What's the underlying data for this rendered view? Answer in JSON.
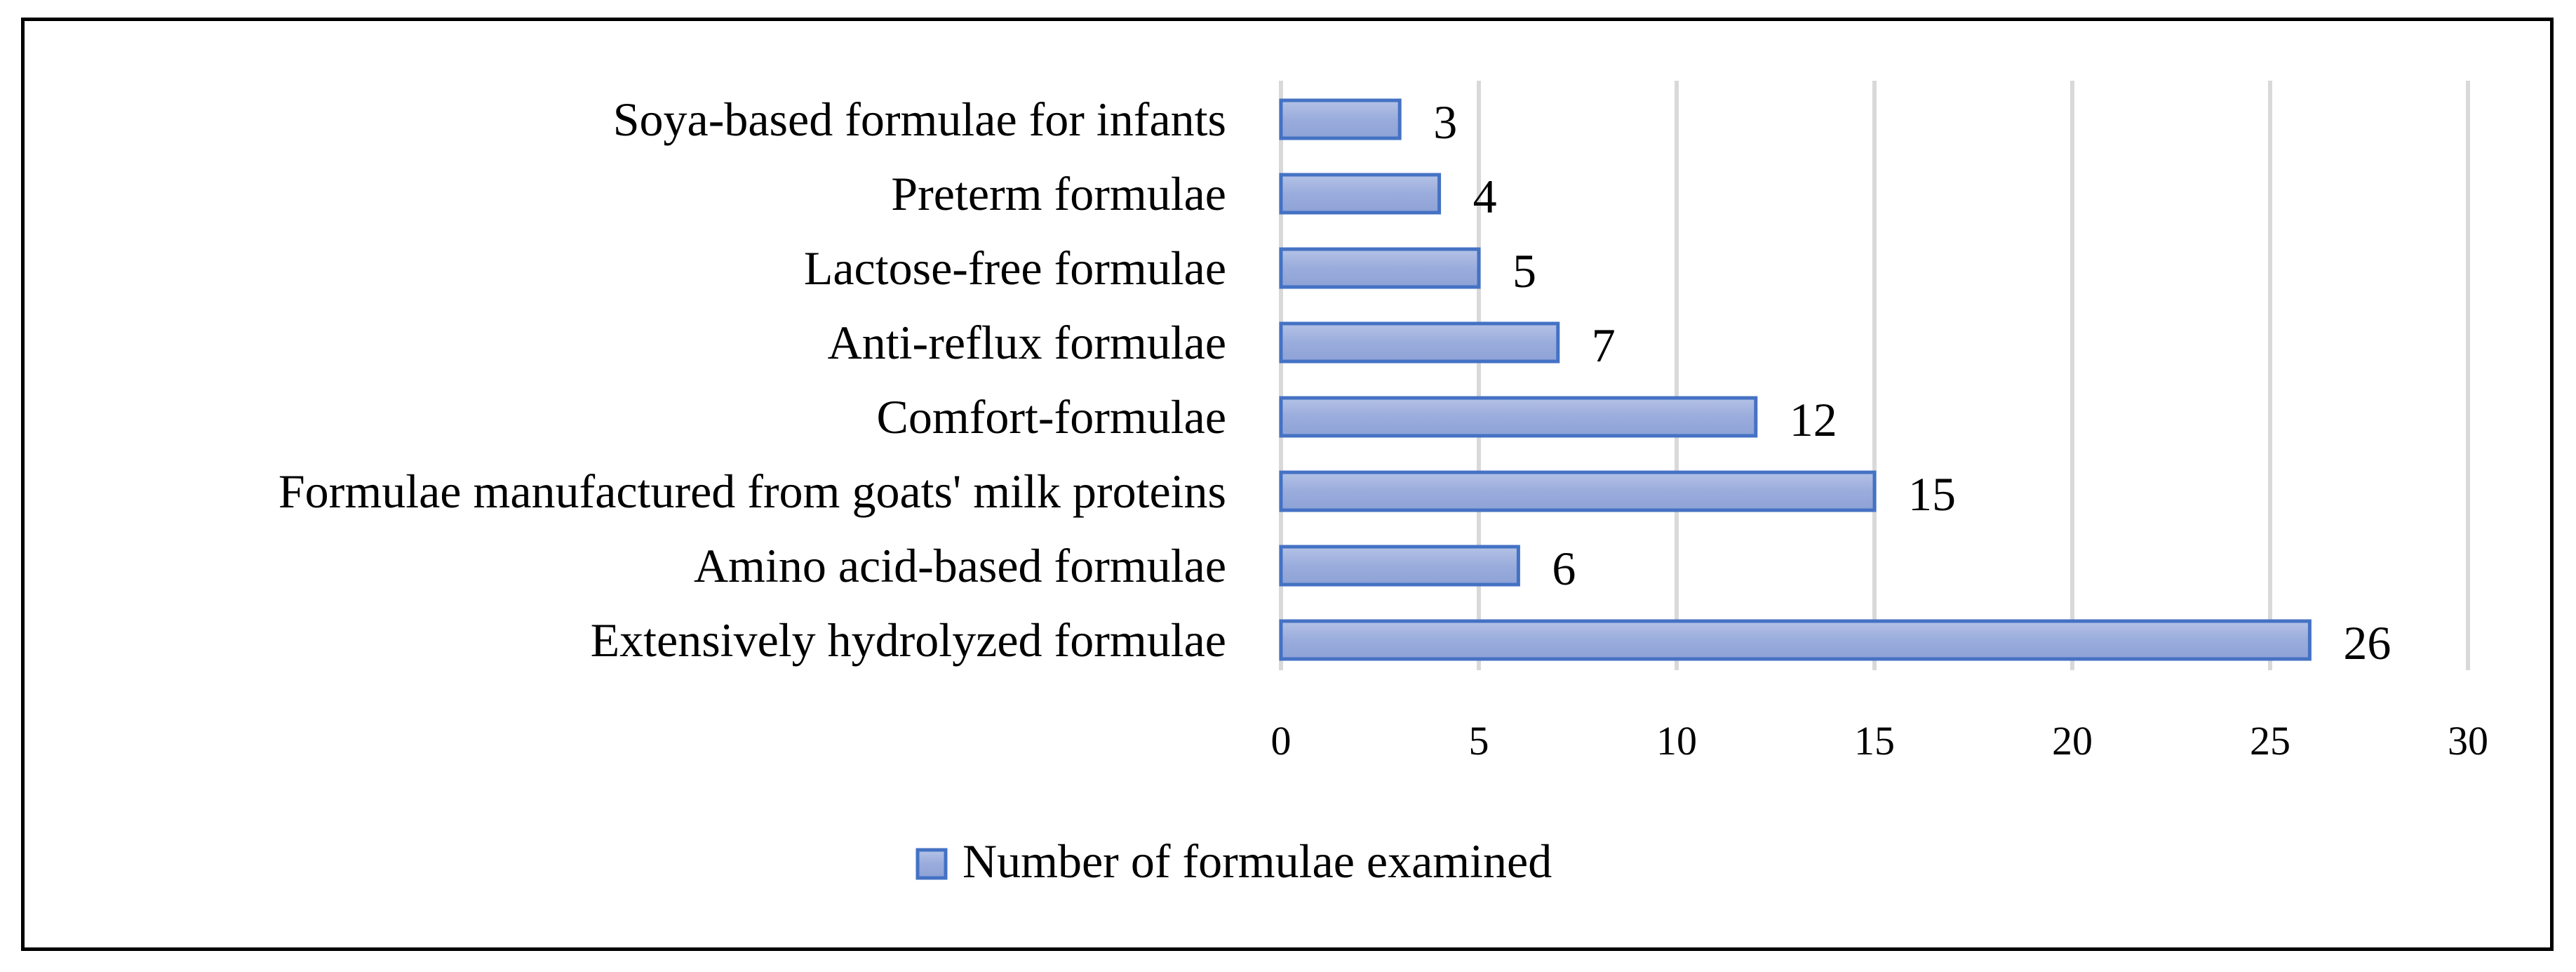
{
  "chart_data": {
    "type": "bar",
    "orientation": "horizontal",
    "categories": [
      "Soya-based formulae for infants",
      "Preterm formulae",
      "Lactose-free formulae",
      "Anti-reflux formulae",
      "Comfort-formulae",
      "Formulae manufactured from goats' milk proteins",
      "Amino acid-based formulae",
      "Extensively hydrolyzed formulae"
    ],
    "series": [
      {
        "name": "Number of formulae examined",
        "values": [
          3,
          4,
          5,
          7,
          12,
          15,
          6,
          26
        ],
        "color": "#9aacdc",
        "border_color": "#4472c4"
      }
    ],
    "data_labels": [
      "3",
      "4",
      "5",
      "7",
      "12",
      "15",
      "6",
      "26"
    ],
    "xlim": [
      0,
      30
    ],
    "xticks": [
      0,
      5,
      10,
      15,
      20,
      25,
      30
    ],
    "xtick_labels": [
      "0",
      "5",
      "10",
      "15",
      "20",
      "25",
      "30"
    ],
    "grid": true,
    "grid_color": "#d9d9d9",
    "legend": "bottom",
    "title": "",
    "xlabel": "",
    "ylabel": ""
  }
}
